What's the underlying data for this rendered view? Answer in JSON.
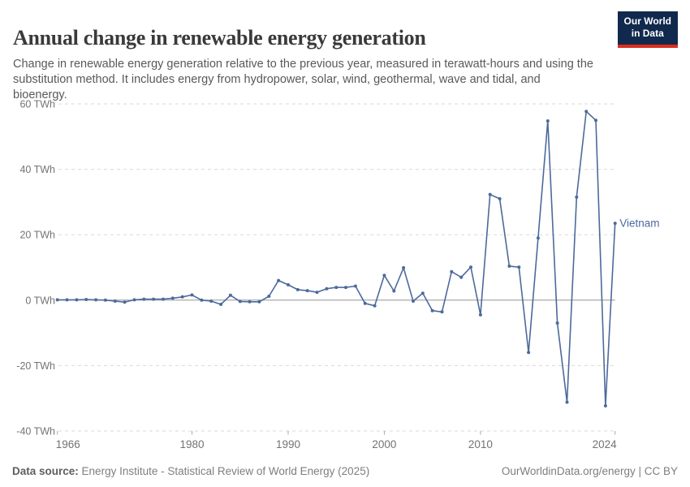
{
  "header": {
    "title": "Annual change in renewable energy generation",
    "subtitle": "Change in renewable energy generation relative to the previous year, measured in terawatt-hours and using the substitution method. It includes energy from hydropower, solar, wind, geothermal, wave and tidal, and bioenergy.",
    "logo": {
      "line1": "Our World",
      "line2": "in Data"
    }
  },
  "footer": {
    "source_label": "Data source:",
    "source_text": "Energy Institute - Statistical Review of World Energy (2025)",
    "credit": "OurWorldinData.org/energy | CC BY"
  },
  "chart_data": {
    "type": "line",
    "title": "Annual change in renewable energy generation",
    "unit": "TWh",
    "entity_label": "Vietnam",
    "grid": "dashed-horizontal",
    "legend_position": "end-of-line-label",
    "ylim": [
      -40,
      60
    ],
    "xlim": [
      1966,
      2024
    ],
    "y_ticks": [
      60,
      40,
      20,
      0,
      -20,
      -40
    ],
    "x_ticks": [
      1966,
      1980,
      1990,
      2000,
      2010,
      2024
    ],
    "series": [
      {
        "name": "Vietnam",
        "x": [
          1966,
          1967,
          1968,
          1969,
          1970,
          1971,
          1972,
          1973,
          1974,
          1975,
          1976,
          1977,
          1978,
          1979,
          1980,
          1981,
          1982,
          1983,
          1984,
          1985,
          1986,
          1987,
          1988,
          1989,
          1990,
          1991,
          1992,
          1993,
          1994,
          1995,
          1996,
          1997,
          1998,
          1999,
          2000,
          2001,
          2002,
          2003,
          2004,
          2005,
          2006,
          2007,
          2008,
          2009,
          2010,
          2011,
          2012,
          2013,
          2014,
          2015,
          2016,
          2017,
          2018,
          2019,
          2020,
          2021,
          2022,
          2023,
          2024
        ],
        "values": [
          0.1,
          0.1,
          0.1,
          0.2,
          0.1,
          0.0,
          -0.3,
          -0.6,
          0.1,
          0.3,
          0.3,
          0.3,
          0.6,
          1.0,
          1.6,
          0.0,
          -0.3,
          -1.3,
          1.5,
          -0.4,
          -0.5,
          -0.5,
          1.2,
          6.0,
          4.7,
          3.2,
          2.9,
          2.4,
          3.5,
          3.9,
          3.9,
          4.3,
          -1.0,
          -1.7,
          7.6,
          2.8,
          9.9,
          -0.3,
          2.1,
          -3.2,
          -3.6,
          8.7,
          7.0,
          10.1,
          -4.5,
          32.3,
          31.0,
          10.4,
          10.1,
          -16.0,
          19.0,
          54.8,
          -7.0,
          -31.2,
          31.5,
          57.7,
          55.0,
          -32.3,
          23.5
        ]
      }
    ],
    "colors": {
      "line": "#4c6a9c",
      "entity_label": "#4c6a9c",
      "grid": "#dadada",
      "zero_line": "#969696",
      "tick_label": "#737373",
      "axis_tick": "#a8a8a8"
    }
  }
}
